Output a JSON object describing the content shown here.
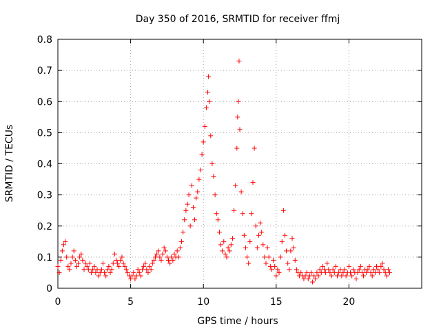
{
  "chart_data": {
    "type": "scatter",
    "title": "Day 350 of 2016, SRMTID for receiver ffmj",
    "xlabel": "GPS time / hours",
    "ylabel": "SRMTID / TECUs",
    "xlim": [
      0,
      25
    ],
    "ylim": [
      0,
      0.8
    ],
    "x_ticks": [
      0,
      5,
      10,
      15,
      20
    ],
    "x_tick_labels": [
      "0",
      "5",
      "10",
      "15",
      "20"
    ],
    "y_ticks": [
      0,
      0.1,
      0.2,
      0.3,
      0.4,
      0.5,
      0.6,
      0.7,
      0.8
    ],
    "y_tick_labels": [
      "0",
      "0.1",
      "0.2",
      "0.3",
      "0.4",
      "0.5",
      "0.6",
      "0.7",
      "0.8"
    ],
    "grid": true,
    "marker": "+",
    "color": "#ff0000",
    "series": [
      {
        "name": "SRMTID",
        "points": [
          [
            0.0,
            0.07
          ],
          [
            0.1,
            0.05
          ],
          [
            0.2,
            0.09
          ],
          [
            0.3,
            0.12
          ],
          [
            0.4,
            0.14
          ],
          [
            0.5,
            0.15
          ],
          [
            0.6,
            0.1
          ],
          [
            0.7,
            0.07
          ],
          [
            0.8,
            0.06
          ],
          [
            0.9,
            0.08
          ],
          [
            1.0,
            0.1
          ],
          [
            1.1,
            0.12
          ],
          [
            1.2,
            0.09
          ],
          [
            1.3,
            0.07
          ],
          [
            1.4,
            0.08
          ],
          [
            1.5,
            0.1
          ],
          [
            1.6,
            0.11
          ],
          [
            1.7,
            0.09
          ],
          [
            1.8,
            0.06
          ],
          [
            1.9,
            0.08
          ],
          [
            2.0,
            0.07
          ],
          [
            2.1,
            0.06
          ],
          [
            2.2,
            0.08
          ],
          [
            2.3,
            0.05
          ],
          [
            2.4,
            0.06
          ],
          [
            2.5,
            0.07
          ],
          [
            2.6,
            0.05
          ],
          [
            2.7,
            0.06
          ],
          [
            2.8,
            0.04
          ],
          [
            2.9,
            0.05
          ],
          [
            3.0,
            0.06
          ],
          [
            3.1,
            0.08
          ],
          [
            3.2,
            0.05
          ],
          [
            3.3,
            0.04
          ],
          [
            3.4,
            0.06
          ],
          [
            3.5,
            0.07
          ],
          [
            3.6,
            0.05
          ],
          [
            3.7,
            0.06
          ],
          [
            3.8,
            0.08
          ],
          [
            3.9,
            0.11
          ],
          [
            4.0,
            0.09
          ],
          [
            4.1,
            0.08
          ],
          [
            4.2,
            0.07
          ],
          [
            4.3,
            0.09
          ],
          [
            4.4,
            0.1
          ],
          [
            4.5,
            0.08
          ],
          [
            4.6,
            0.07
          ],
          [
            4.7,
            0.06
          ],
          [
            4.8,
            0.05
          ],
          [
            4.9,
            0.04
          ],
          [
            5.0,
            0.03
          ],
          [
            5.1,
            0.04
          ],
          [
            5.2,
            0.05
          ],
          [
            5.3,
            0.03
          ],
          [
            5.4,
            0.04
          ],
          [
            5.5,
            0.06
          ],
          [
            5.6,
            0.05
          ],
          [
            5.7,
            0.04
          ],
          [
            5.8,
            0.06
          ],
          [
            5.9,
            0.07
          ],
          [
            6.0,
            0.08
          ],
          [
            6.1,
            0.06
          ],
          [
            6.2,
            0.05
          ],
          [
            6.3,
            0.07
          ],
          [
            6.4,
            0.06
          ],
          [
            6.5,
            0.08
          ],
          [
            6.6,
            0.09
          ],
          [
            6.7,
            0.1
          ],
          [
            6.8,
            0.11
          ],
          [
            6.9,
            0.12
          ],
          [
            7.0,
            0.1
          ],
          [
            7.1,
            0.09
          ],
          [
            7.2,
            0.11
          ],
          [
            7.3,
            0.13
          ],
          [
            7.4,
            0.12
          ],
          [
            7.5,
            0.1
          ],
          [
            7.6,
            0.09
          ],
          [
            7.7,
            0.08
          ],
          [
            7.8,
            0.1
          ],
          [
            7.9,
            0.09
          ],
          [
            8.0,
            0.11
          ],
          [
            8.1,
            0.1
          ],
          [
            8.2,
            0.12
          ],
          [
            8.3,
            0.1
          ],
          [
            8.4,
            0.13
          ],
          [
            8.5,
            0.15
          ],
          [
            8.6,
            0.18
          ],
          [
            8.7,
            0.22
          ],
          [
            8.8,
            0.25
          ],
          [
            8.9,
            0.27
          ],
          [
            9.0,
            0.3
          ],
          [
            9.1,
            0.2
          ],
          [
            9.2,
            0.33
          ],
          [
            9.3,
            0.26
          ],
          [
            9.4,
            0.22
          ],
          [
            9.5,
            0.29
          ],
          [
            9.6,
            0.31
          ],
          [
            9.7,
            0.35
          ],
          [
            9.8,
            0.38
          ],
          [
            9.9,
            0.43
          ],
          [
            10.0,
            0.47
          ],
          [
            10.1,
            0.52
          ],
          [
            10.2,
            0.58
          ],
          [
            10.3,
            0.63
          ],
          [
            10.35,
            0.68
          ],
          [
            10.4,
            0.6
          ],
          [
            10.5,
            0.49
          ],
          [
            10.6,
            0.4
          ],
          [
            10.7,
            0.36
          ],
          [
            10.8,
            0.3
          ],
          [
            10.9,
            0.24
          ],
          [
            11.0,
            0.22
          ],
          [
            11.1,
            0.18
          ],
          [
            11.2,
            0.14
          ],
          [
            11.3,
            0.12
          ],
          [
            11.4,
            0.15
          ],
          [
            11.5,
            0.11
          ],
          [
            11.6,
            0.1
          ],
          [
            11.7,
            0.13
          ],
          [
            11.8,
            0.12
          ],
          [
            11.9,
            0.14
          ],
          [
            12.0,
            0.16
          ],
          [
            12.1,
            0.25
          ],
          [
            12.2,
            0.33
          ],
          [
            12.3,
            0.45
          ],
          [
            12.35,
            0.55
          ],
          [
            12.4,
            0.6
          ],
          [
            12.45,
            0.73
          ],
          [
            12.5,
            0.51
          ],
          [
            12.6,
            0.31
          ],
          [
            12.7,
            0.24
          ],
          [
            12.8,
            0.17
          ],
          [
            12.9,
            0.13
          ],
          [
            13.0,
            0.1
          ],
          [
            13.1,
            0.08
          ],
          [
            13.2,
            0.15
          ],
          [
            13.3,
            0.24
          ],
          [
            13.4,
            0.34
          ],
          [
            13.5,
            0.45
          ],
          [
            13.6,
            0.2
          ],
          [
            13.7,
            0.13
          ],
          [
            13.8,
            0.17
          ],
          [
            13.9,
            0.21
          ],
          [
            14.0,
            0.18
          ],
          [
            14.1,
            0.14
          ],
          [
            14.2,
            0.1
          ],
          [
            14.3,
            0.08
          ],
          [
            14.4,
            0.13
          ],
          [
            14.5,
            0.1
          ],
          [
            14.6,
            0.07
          ],
          [
            14.7,
            0.06
          ],
          [
            14.8,
            0.09
          ],
          [
            14.9,
            0.07
          ],
          [
            15.0,
            0.04
          ],
          [
            15.1,
            0.06
          ],
          [
            15.2,
            0.05
          ],
          [
            15.3,
            0.1
          ],
          [
            15.4,
            0.15
          ],
          [
            15.5,
            0.25
          ],
          [
            15.6,
            0.17
          ],
          [
            15.7,
            0.12
          ],
          [
            15.8,
            0.08
          ],
          [
            15.9,
            0.06
          ],
          [
            16.0,
            0.12
          ],
          [
            16.1,
            0.16
          ],
          [
            16.2,
            0.13
          ],
          [
            16.3,
            0.09
          ],
          [
            16.4,
            0.06
          ],
          [
            16.5,
            0.05
          ],
          [
            16.6,
            0.04
          ],
          [
            16.7,
            0.05
          ],
          [
            16.8,
            0.04
          ],
          [
            16.9,
            0.03
          ],
          [
            17.0,
            0.04
          ],
          [
            17.1,
            0.05
          ],
          [
            17.2,
            0.03
          ],
          [
            17.3,
            0.04
          ],
          [
            17.4,
            0.05
          ],
          [
            17.5,
            0.02
          ],
          [
            17.6,
            0.04
          ],
          [
            17.7,
            0.03
          ],
          [
            17.8,
            0.05
          ],
          [
            17.9,
            0.04
          ],
          [
            18.0,
            0.06
          ],
          [
            18.1,
            0.05
          ],
          [
            18.2,
            0.07
          ],
          [
            18.3,
            0.06
          ],
          [
            18.4,
            0.05
          ],
          [
            18.5,
            0.08
          ],
          [
            18.6,
            0.06
          ],
          [
            18.7,
            0.05
          ],
          [
            18.8,
            0.04
          ],
          [
            18.9,
            0.06
          ],
          [
            19.0,
            0.05
          ],
          [
            19.1,
            0.07
          ],
          [
            19.2,
            0.04
          ],
          [
            19.3,
            0.05
          ],
          [
            19.4,
            0.06
          ],
          [
            19.5,
            0.04
          ],
          [
            19.6,
            0.05
          ],
          [
            19.7,
            0.06
          ],
          [
            19.8,
            0.04
          ],
          [
            19.9,
            0.05
          ],
          [
            20.0,
            0.07
          ],
          [
            20.1,
            0.05
          ],
          [
            20.2,
            0.04
          ],
          [
            20.3,
            0.06
          ],
          [
            20.4,
            0.05
          ],
          [
            20.5,
            0.03
          ],
          [
            20.6,
            0.05
          ],
          [
            20.7,
            0.06
          ],
          [
            20.8,
            0.07
          ],
          [
            20.9,
            0.05
          ],
          [
            21.0,
            0.04
          ],
          [
            21.1,
            0.06
          ],
          [
            21.2,
            0.05
          ],
          [
            21.3,
            0.06
          ],
          [
            21.4,
            0.07
          ],
          [
            21.5,
            0.05
          ],
          [
            21.6,
            0.04
          ],
          [
            21.7,
            0.06
          ],
          [
            21.8,
            0.05
          ],
          [
            21.9,
            0.07
          ],
          [
            22.0,
            0.06
          ],
          [
            22.1,
            0.05
          ],
          [
            22.2,
            0.07
          ],
          [
            22.3,
            0.08
          ],
          [
            22.4,
            0.06
          ],
          [
            22.5,
            0.05
          ],
          [
            22.6,
            0.04
          ],
          [
            22.7,
            0.06
          ],
          [
            22.8,
            0.05
          ]
        ]
      }
    ]
  }
}
